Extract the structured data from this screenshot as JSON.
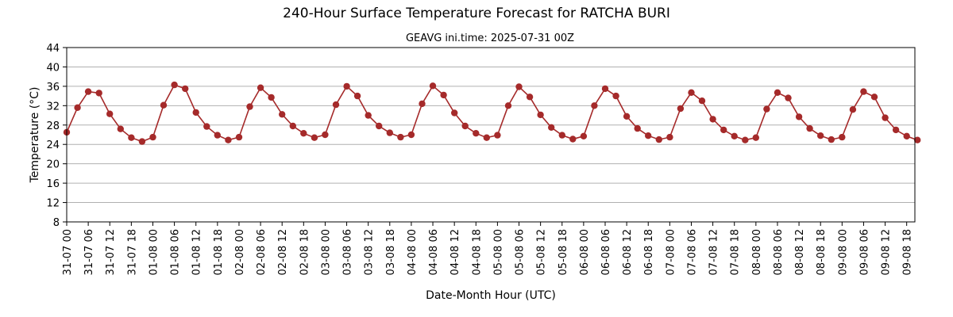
{
  "chart_data": {
    "type": "line",
    "title": "240-Hour Surface Temperature Forecast for RATCHA BURI",
    "subtitle": "GEAVG ini.time: 2025-07-31 00Z",
    "xlabel": "Date-Month Hour (UTC)",
    "ylabel": "Temperature (°C)",
    "ylim": [
      8,
      44
    ],
    "yticks": [
      8,
      12,
      16,
      20,
      24,
      28,
      32,
      36,
      40,
      44
    ],
    "xlim": [
      "31-07 00",
      "09-08 21"
    ],
    "xtick_labels": [
      "31-07 00",
      "31-07 06",
      "31-07 12",
      "31-07 18",
      "01-08 00",
      "01-08 06",
      "01-08 12",
      "01-08 18",
      "02-08 00",
      "02-08 06",
      "02-08 12",
      "02-08 18",
      "03-08 00",
      "03-08 06",
      "03-08 12",
      "03-08 18",
      "04-08 00",
      "04-08 06",
      "04-08 12",
      "04-08 18",
      "05-08 00",
      "05-08 06",
      "05-08 12",
      "05-08 18",
      "06-08 00",
      "06-08 06",
      "06-08 12",
      "06-08 18",
      "07-08 00",
      "07-08 06",
      "07-08 12",
      "07-08 18",
      "08-08 00",
      "08-08 06",
      "08-08 12",
      "08-08 18",
      "09-08 00",
      "09-08 06",
      "09-08 12",
      "09-08 18"
    ],
    "grid": "horizontal",
    "color": "#a52a2a",
    "x": [
      "31-07 00",
      "31-07 03",
      "31-07 06",
      "31-07 09",
      "31-07 12",
      "31-07 15",
      "31-07 18",
      "31-07 21",
      "01-08 00",
      "01-08 03",
      "01-08 06",
      "01-08 09",
      "01-08 12",
      "01-08 15",
      "01-08 18",
      "01-08 21",
      "02-08 00",
      "02-08 03",
      "02-08 06",
      "02-08 09",
      "02-08 12",
      "02-08 15",
      "02-08 18",
      "02-08 21",
      "03-08 00",
      "03-08 03",
      "03-08 06",
      "03-08 09",
      "03-08 12",
      "03-08 15",
      "03-08 18",
      "03-08 21",
      "04-08 00",
      "04-08 03",
      "04-08 06",
      "04-08 09",
      "04-08 12",
      "04-08 15",
      "04-08 18",
      "04-08 21",
      "05-08 00",
      "05-08 03",
      "05-08 06",
      "05-08 09",
      "05-08 12",
      "05-08 15",
      "05-08 18",
      "05-08 21",
      "06-08 00",
      "06-08 03",
      "06-08 06",
      "06-08 09",
      "06-08 12",
      "06-08 15",
      "06-08 18",
      "06-08 21",
      "07-08 00",
      "07-08 03",
      "07-08 06",
      "07-08 09",
      "07-08 12",
      "07-08 15",
      "07-08 18",
      "07-08 21",
      "08-08 00",
      "08-08 03",
      "08-08 06",
      "08-08 09",
      "08-08 12",
      "08-08 15",
      "08-08 18",
      "08-08 21",
      "09-08 00",
      "09-08 03",
      "09-08 06",
      "09-08 09",
      "09-08 12",
      "09-08 15",
      "09-08 18",
      "09-08 21"
    ],
    "values": [
      26.5,
      31.6,
      34.9,
      34.6,
      30.3,
      27.2,
      25.4,
      24.6,
      25.5,
      32.1,
      36.3,
      35.5,
      30.6,
      27.7,
      25.9,
      24.9,
      25.5,
      31.8,
      35.7,
      33.7,
      30.2,
      27.8,
      26.3,
      25.4,
      26.0,
      32.2,
      36.0,
      34.0,
      30.0,
      27.8,
      26.4,
      25.5,
      26.0,
      32.4,
      36.1,
      34.2,
      30.5,
      27.8,
      26.3,
      25.4,
      25.9,
      32.0,
      35.9,
      33.8,
      30.1,
      27.5,
      25.9,
      25.1,
      25.7,
      32.0,
      35.5,
      34.0,
      29.8,
      27.3,
      25.8,
      25.0,
      25.5,
      31.4,
      34.7,
      33.0,
      29.2,
      27.0,
      25.7,
      24.9,
      25.4,
      31.3,
      34.7,
      33.6,
      29.7,
      27.3,
      25.8,
      25.0,
      25.5,
      31.2,
      34.9,
      33.8,
      29.5,
      27.0,
      25.7,
      24.9
    ]
  }
}
